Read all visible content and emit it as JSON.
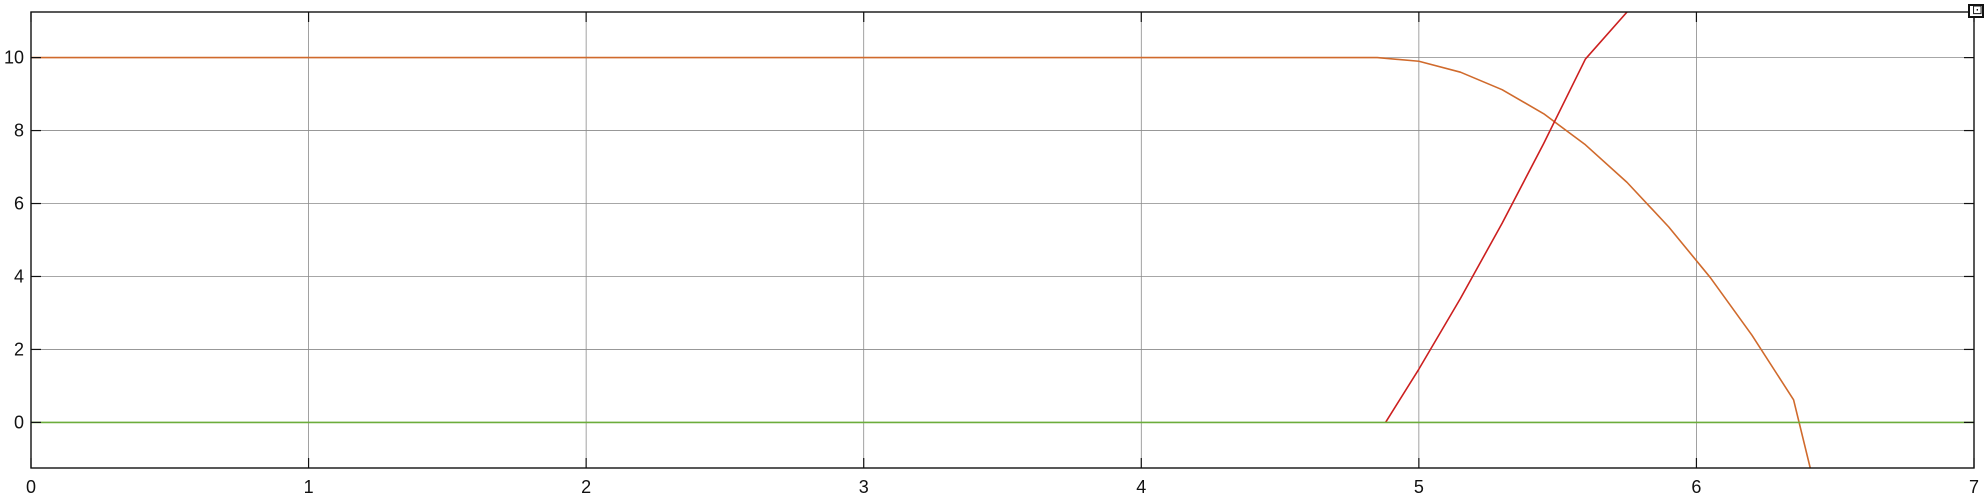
{
  "chart_data": {
    "type": "line",
    "title": "",
    "xlabel": "",
    "ylabel": "",
    "xlim": [
      0,
      7
    ],
    "ylim": [
      -1.25,
      11.25
    ],
    "grid": true,
    "legend": "none",
    "x_ticks": [
      "0",
      "1",
      "2",
      "3",
      "4",
      "5",
      "6",
      "7"
    ],
    "y_ticks": [
      "0",
      "2",
      "4",
      "6",
      "8",
      "10"
    ],
    "series": [
      {
        "color": "#d06a2c",
        "x": [
          0,
          4.85,
          5.0,
          5.15,
          5.3,
          5.45,
          5.6,
          5.75,
          5.9,
          6.05,
          6.2,
          6.35,
          6.41
        ],
        "y": [
          10,
          10,
          9.9,
          9.6,
          9.12,
          8.46,
          7.61,
          6.58,
          5.36,
          3.97,
          2.39,
          0.62,
          -1.25
        ]
      },
      {
        "color": "#cc1f1f",
        "x": [
          4.88,
          5.0,
          5.15,
          5.3,
          5.45,
          5.6,
          5.75
        ],
        "y": [
          0,
          1.46,
          3.4,
          5.46,
          7.65,
          9.96,
          11.25
        ]
      },
      {
        "color": "#6cad3c",
        "x": [
          0,
          7
        ],
        "y": [
          0,
          0
        ]
      }
    ]
  },
  "toolbar": {
    "corner_icon": "expand-icon",
    "corner_glyph": "⊡"
  }
}
